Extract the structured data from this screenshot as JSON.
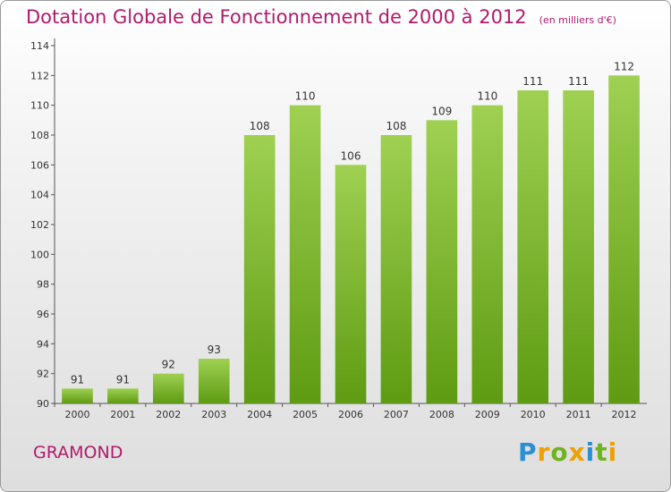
{
  "header": {
    "title": "Dotation Globale de Fonctionnement de 2000 à 2012",
    "unit": "(en milliers d'€)"
  },
  "footer": {
    "place": "GRAMOND",
    "logo": [
      "P",
      "r",
      "o",
      "x",
      "i",
      "t",
      "i"
    ]
  },
  "colors": {
    "title": "#b01a6c",
    "bar_top": "#9fd052",
    "bar_bottom": "#5e9b12"
  },
  "chart_data": {
    "type": "bar",
    "title": "Dotation Globale de Fonctionnement de 2000 à 2012",
    "subtitle": "(en milliers d'€)",
    "xlabel": "",
    "ylabel": "",
    "categories": [
      "2000",
      "2001",
      "2002",
      "2003",
      "2004",
      "2005",
      "2006",
      "2007",
      "2008",
      "2009",
      "2010",
      "2011",
      "2012"
    ],
    "values": [
      91,
      91,
      92,
      93,
      108,
      110,
      106,
      108,
      109,
      110,
      111,
      111,
      112
    ],
    "ylim": [
      90,
      114
    ],
    "yticks": [
      90,
      92,
      94,
      96,
      98,
      100,
      102,
      104,
      106,
      108,
      110,
      112,
      114
    ],
    "grid": false,
    "legend": "none"
  }
}
